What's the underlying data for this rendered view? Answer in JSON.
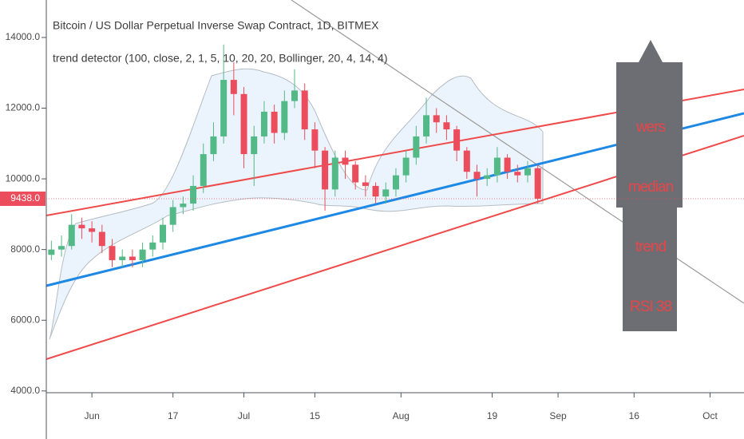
{
  "chart_data": {
    "type": "candlestick",
    "title": "Bitcoin / US Dollar Perpetual Inverse Swap Contract, 1D, BITMEX",
    "indicator": "trend detector (100, close, 2, 1, 5, 10, 20, 20, Bollinger, 20, 4, 14, 4)",
    "panel_labels": [
      "wers",
      "median",
      "trend",
      "RSI 38"
    ],
    "last_price": {
      "value": 9438,
      "label": "9438.0"
    },
    "up_color": "#53b987",
    "down_color": "#eb4d5c",
    "x": [
      -8,
      -6,
      -4,
      -2,
      0,
      2,
      4,
      6,
      8,
      10,
      12,
      14,
      16,
      18,
      20,
      22,
      24,
      26,
      28,
      30,
      32,
      34,
      36,
      38,
      40,
      42,
      44,
      46,
      48,
      50,
      52,
      54,
      56,
      58,
      60,
      62,
      64,
      66,
      68,
      70,
      72,
      74,
      76,
      78,
      80,
      82,
      84,
      86,
      88
    ],
    "open": [
      7850,
      8000,
      8100,
      8700,
      8600,
      8500,
      8100,
      7700,
      7800,
      7700,
      8000,
      8200,
      8700,
      9200,
      9300,
      9800,
      10700,
      11200,
      12800,
      12400,
      10700,
      11200,
      11900,
      11300,
      12200,
      12500,
      11400,
      10800,
      9700,
      10600,
      10400,
      9900,
      9800,
      9500,
      9700,
      10100,
      10600,
      11200,
      11800,
      11600,
      11400,
      10800,
      10200,
      10000,
      10100,
      10600,
      10200,
      10100,
      10300
    ],
    "high": [
      8250,
      8400,
      9000,
      8900,
      8800,
      8700,
      8300,
      8000,
      8000,
      8200,
      8400,
      8900,
      9400,
      9500,
      10100,
      11000,
      11600,
      13800,
      13300,
      12600,
      11500,
      12200,
      12100,
      12500,
      13100,
      12700,
      11600,
      10900,
      10800,
      10800,
      10500,
      10100,
      9900,
      9900,
      10300,
      10800,
      11500,
      12300,
      12000,
      11800,
      11500,
      10900,
      10400,
      10300,
      10900,
      10700,
      10400,
      10500,
      10400
    ],
    "low": [
      7700,
      7800,
      8000,
      8300,
      8200,
      7900,
      7500,
      7500,
      7500,
      7500,
      7800,
      8000,
      8500,
      9000,
      9100,
      9600,
      10500,
      11000,
      11800,
      10300,
      9800,
      11000,
      11000,
      11100,
      12000,
      11100,
      10300,
      9100,
      9500,
      10000,
      9700,
      9500,
      9300,
      9300,
      9500,
      9900,
      10400,
      11000,
      11300,
      11100,
      10500,
      10000,
      9500,
      9800,
      9900,
      10000,
      9900,
      9900,
      9300
    ],
    "close": [
      8000,
      8100,
      8700,
      8600,
      8500,
      8100,
      7700,
      7800,
      7700,
      8000,
      8200,
      8700,
      9200,
      9300,
      9800,
      10700,
      11200,
      12800,
      12400,
      10700,
      11200,
      11900,
      11300,
      12200,
      12500,
      11400,
      10800,
      9700,
      10600,
      10400,
      9900,
      9800,
      9500,
      9700,
      10100,
      10600,
      11200,
      11800,
      11600,
      11400,
      10800,
      10200,
      10000,
      10100,
      10600,
      10200,
      10100,
      10300,
      9438
    ],
    "xlim": [
      -9,
      128.7
    ],
    "xticks": [
      {
        "value": 0,
        "label": "Jun"
      },
      {
        "value": 16,
        "label": "17"
      },
      {
        "value": 30,
        "label": "Jul"
      },
      {
        "value": 44,
        "label": "15"
      },
      {
        "value": 61,
        "label": "Aug"
      },
      {
        "value": 79,
        "label": "19"
      },
      {
        "value": 92,
        "label": "Sep"
      },
      {
        "value": 107,
        "label": "16"
      },
      {
        "value": 122,
        "label": "Oct"
      }
    ],
    "ylim": [
      3950,
      15060
    ],
    "yticks": [
      {
        "value": 4000,
        "label": "4000.0"
      },
      {
        "value": 6000,
        "label": "6000.0"
      },
      {
        "value": 8000,
        "label": "8000.0"
      },
      {
        "value": 10000,
        "label": "10000.0"
      },
      {
        "value": 12000,
        "label": "12000.0"
      },
      {
        "value": 14000,
        "label": "14000.0"
      }
    ]
  }
}
